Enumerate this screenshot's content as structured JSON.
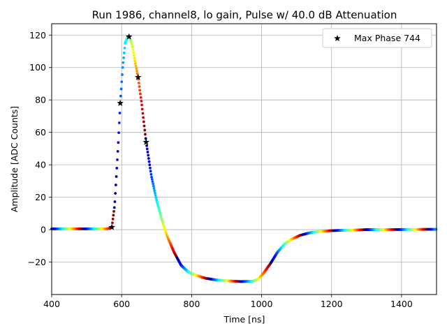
{
  "chart_data": {
    "type": "scatter",
    "title": "Run 1986, channel8, lo gain, Pulse w/ 40.0 dB Attenuation",
    "xlabel": "Time [ns]",
    "ylabel": "Amplitude [ADC Counts]",
    "xlim": [
      400,
      1500
    ],
    "ylim": [
      -40,
      127
    ],
    "xticks": [
      400,
      600,
      800,
      1000,
      1200,
      1400
    ],
    "yticks": [
      -20,
      0,
      20,
      40,
      60,
      80,
      100,
      120
    ],
    "xtick_labels": [
      "400",
      "600",
      "800",
      "1000",
      "1200",
      "1400"
    ],
    "ytick_labels": [
      "−20",
      "0",
      "20",
      "40",
      "60",
      "80",
      "100",
      "120"
    ],
    "grid": true,
    "legend": {
      "position": "upper right",
      "entries": [
        "Max Phase 744"
      ]
    },
    "pulse_curve": {
      "description_series": "rainbow-colored waveform samples",
      "points": [
        [
          400,
          0.5
        ],
        [
          560,
          0.5
        ],
        [
          572,
          1.5
        ],
        [
          580,
          15
        ],
        [
          590,
          52
        ],
        [
          596,
          78
        ],
        [
          603,
          100
        ],
        [
          610,
          115
        ],
        [
          617,
          119
        ],
        [
          622,
          119
        ],
        [
          630,
          114
        ],
        [
          638,
          104
        ],
        [
          647,
          94
        ],
        [
          657,
          78
        ],
        [
          670,
          54
        ],
        [
          685,
          33
        ],
        [
          700,
          18
        ],
        [
          715,
          6
        ],
        [
          730,
          -4
        ],
        [
          750,
          -14
        ],
        [
          770,
          -22
        ],
        [
          790,
          -26
        ],
        [
          810,
          -28
        ],
        [
          840,
          -30
        ],
        [
          870,
          -31
        ],
        [
          900,
          -31.5
        ],
        [
          940,
          -32
        ],
        [
          975,
          -31.8
        ],
        [
          990,
          -30.5
        ],
        [
          1005,
          -27
        ],
        [
          1025,
          -21
        ],
        [
          1045,
          -14
        ],
        [
          1065,
          -9
        ],
        [
          1085,
          -6
        ],
        [
          1110,
          -3.5
        ],
        [
          1140,
          -1.8
        ],
        [
          1170,
          -1.0
        ],
        [
          1200,
          -0.6
        ],
        [
          1250,
          -0.3
        ],
        [
          1300,
          0
        ],
        [
          1400,
          0.1
        ],
        [
          1500,
          0.2
        ]
      ]
    },
    "series": [
      {
        "name": "Max Phase 744",
        "marker": "star",
        "x": [
          572,
          596,
          621,
          647,
          670
        ],
        "y": [
          1.5,
          78,
          119,
          94,
          54
        ]
      }
    ]
  }
}
